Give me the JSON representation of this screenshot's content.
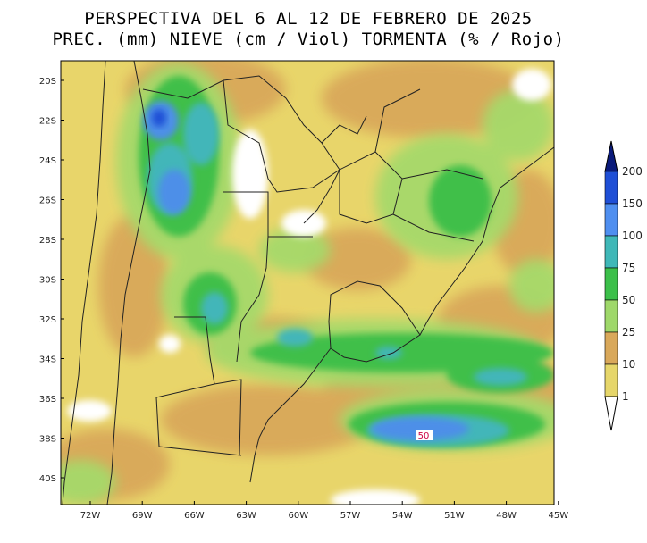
{
  "title": {
    "line1": "PERSPECTIVA DEL 6 AL 12 DE FEBRERO DE 2025",
    "line2": "PREC. (mm) NIEVE (cm / Viol) TORMENTA (% / Rojo)"
  },
  "latitude_labels": [
    "20S",
    "22S",
    "24S",
    "26S",
    "28S",
    "30S",
    "32S",
    "34S",
    "36S",
    "38S",
    "40S"
  ],
  "longitude_labels": [
    "72W",
    "69W",
    "66W",
    "63W",
    "60W",
    "57W",
    "54W",
    "51W",
    "48W",
    "45W"
  ],
  "colorbar": {
    "levels": [
      {
        "label": "200",
        "color": "#0a1a7a"
      },
      {
        "label": "150",
        "color": "#1f4fd6"
      },
      {
        "label": "100",
        "color": "#4f8ff0"
      },
      {
        "label": "75",
        "color": "#3fb8b8"
      },
      {
        "label": "50",
        "color": "#3cc04a"
      },
      {
        "label": "25",
        "color": "#9fd86a"
      },
      {
        "label": "10",
        "color": "#d9a85a"
      },
      {
        "label": "1",
        "color": "#e6d66a"
      }
    ]
  },
  "storm_label": {
    "text": "50",
    "color": "#cc0044"
  },
  "colors": {
    "ocean_base": "#ecd76c",
    "land_base": "#e3cf63",
    "light_green": "#a6d96a",
    "green": "#3fbf4a",
    "teal": "#42b6b9",
    "blue": "#4e8fe8",
    "dark_blue": "#1f4fd6",
    "orange": "#d9a85a",
    "white": "#ffffff"
  }
}
